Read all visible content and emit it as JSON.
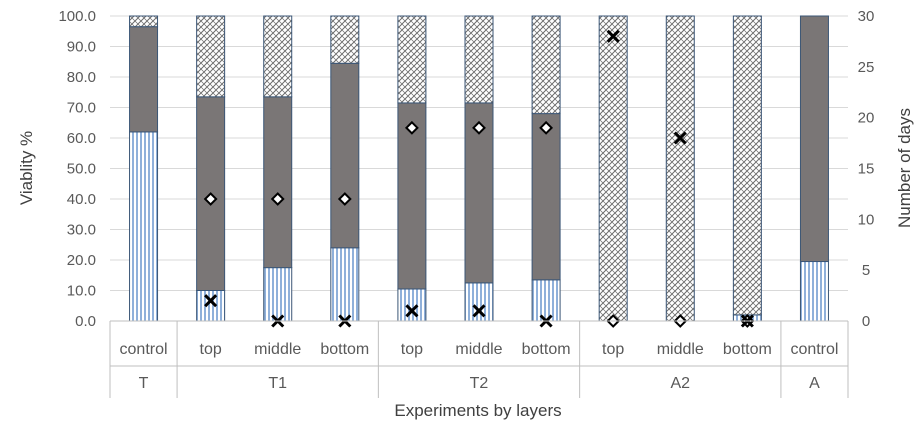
{
  "chart_data": {
    "type": "bar",
    "stacked": true,
    "xlabel": "Experiments by layers",
    "ylabel": "Viablity %",
    "y2label": "Number of days",
    "ylim": [
      0,
      100
    ],
    "y2lim": [
      0,
      30
    ],
    "yticks": [
      "0.0",
      "10.0",
      "20.0",
      "30.0",
      "40.0",
      "50.0",
      "60.0",
      "70.0",
      "80.0",
      "90.0",
      "100.0"
    ],
    "y2ticks": [
      "0",
      "5",
      "10",
      "15",
      "20",
      "25",
      "30"
    ],
    "groups": [
      {
        "name": "T",
        "categories": [
          "control"
        ]
      },
      {
        "name": "T1",
        "categories": [
          "top",
          "middle",
          "bottom"
        ]
      },
      {
        "name": "T2",
        "categories": [
          "top",
          "middle",
          "bottom"
        ]
      },
      {
        "name": "A2",
        "categories": [
          "top",
          "middle",
          "bottom"
        ]
      },
      {
        "name": "A",
        "categories": [
          "control"
        ]
      }
    ],
    "series": [
      {
        "key": "s1",
        "pattern": "vertical-lines-blue",
        "values": [
          62,
          10,
          17.5,
          24,
          10.5,
          12.5,
          13.5,
          0,
          0,
          2,
          19.5
        ]
      },
      {
        "key": "s2",
        "pattern": "solid-gray",
        "values": [
          34.5,
          63.5,
          56,
          60.5,
          61,
          59,
          54.5,
          0,
          0,
          0,
          80.5
        ]
      },
      {
        "key": "s3",
        "pattern": "diagonal-crosshatch",
        "values": [
          3.5,
          26.5,
          26.5,
          15.5,
          28.5,
          28.5,
          32,
          100,
          100,
          98,
          0
        ]
      }
    ],
    "markers": [
      {
        "key": "m1",
        "shape": "diamond",
        "axis": "secondary",
        "values": [
          null,
          12,
          12,
          12,
          19,
          19,
          19,
          0,
          0,
          0,
          null
        ]
      },
      {
        "key": "m2",
        "shape": "x",
        "axis": "secondary",
        "values": [
          null,
          2,
          0,
          0,
          1,
          1,
          0,
          28,
          18,
          0,
          null
        ]
      }
    ],
    "colors": {
      "s1": "#a9c4e4",
      "s1_lines": "#2e5b8a",
      "s2": "#7a7676",
      "s3_bg": "#ffffff",
      "s3_lines": "#595959",
      "bar_border": "#3b5676"
    }
  }
}
